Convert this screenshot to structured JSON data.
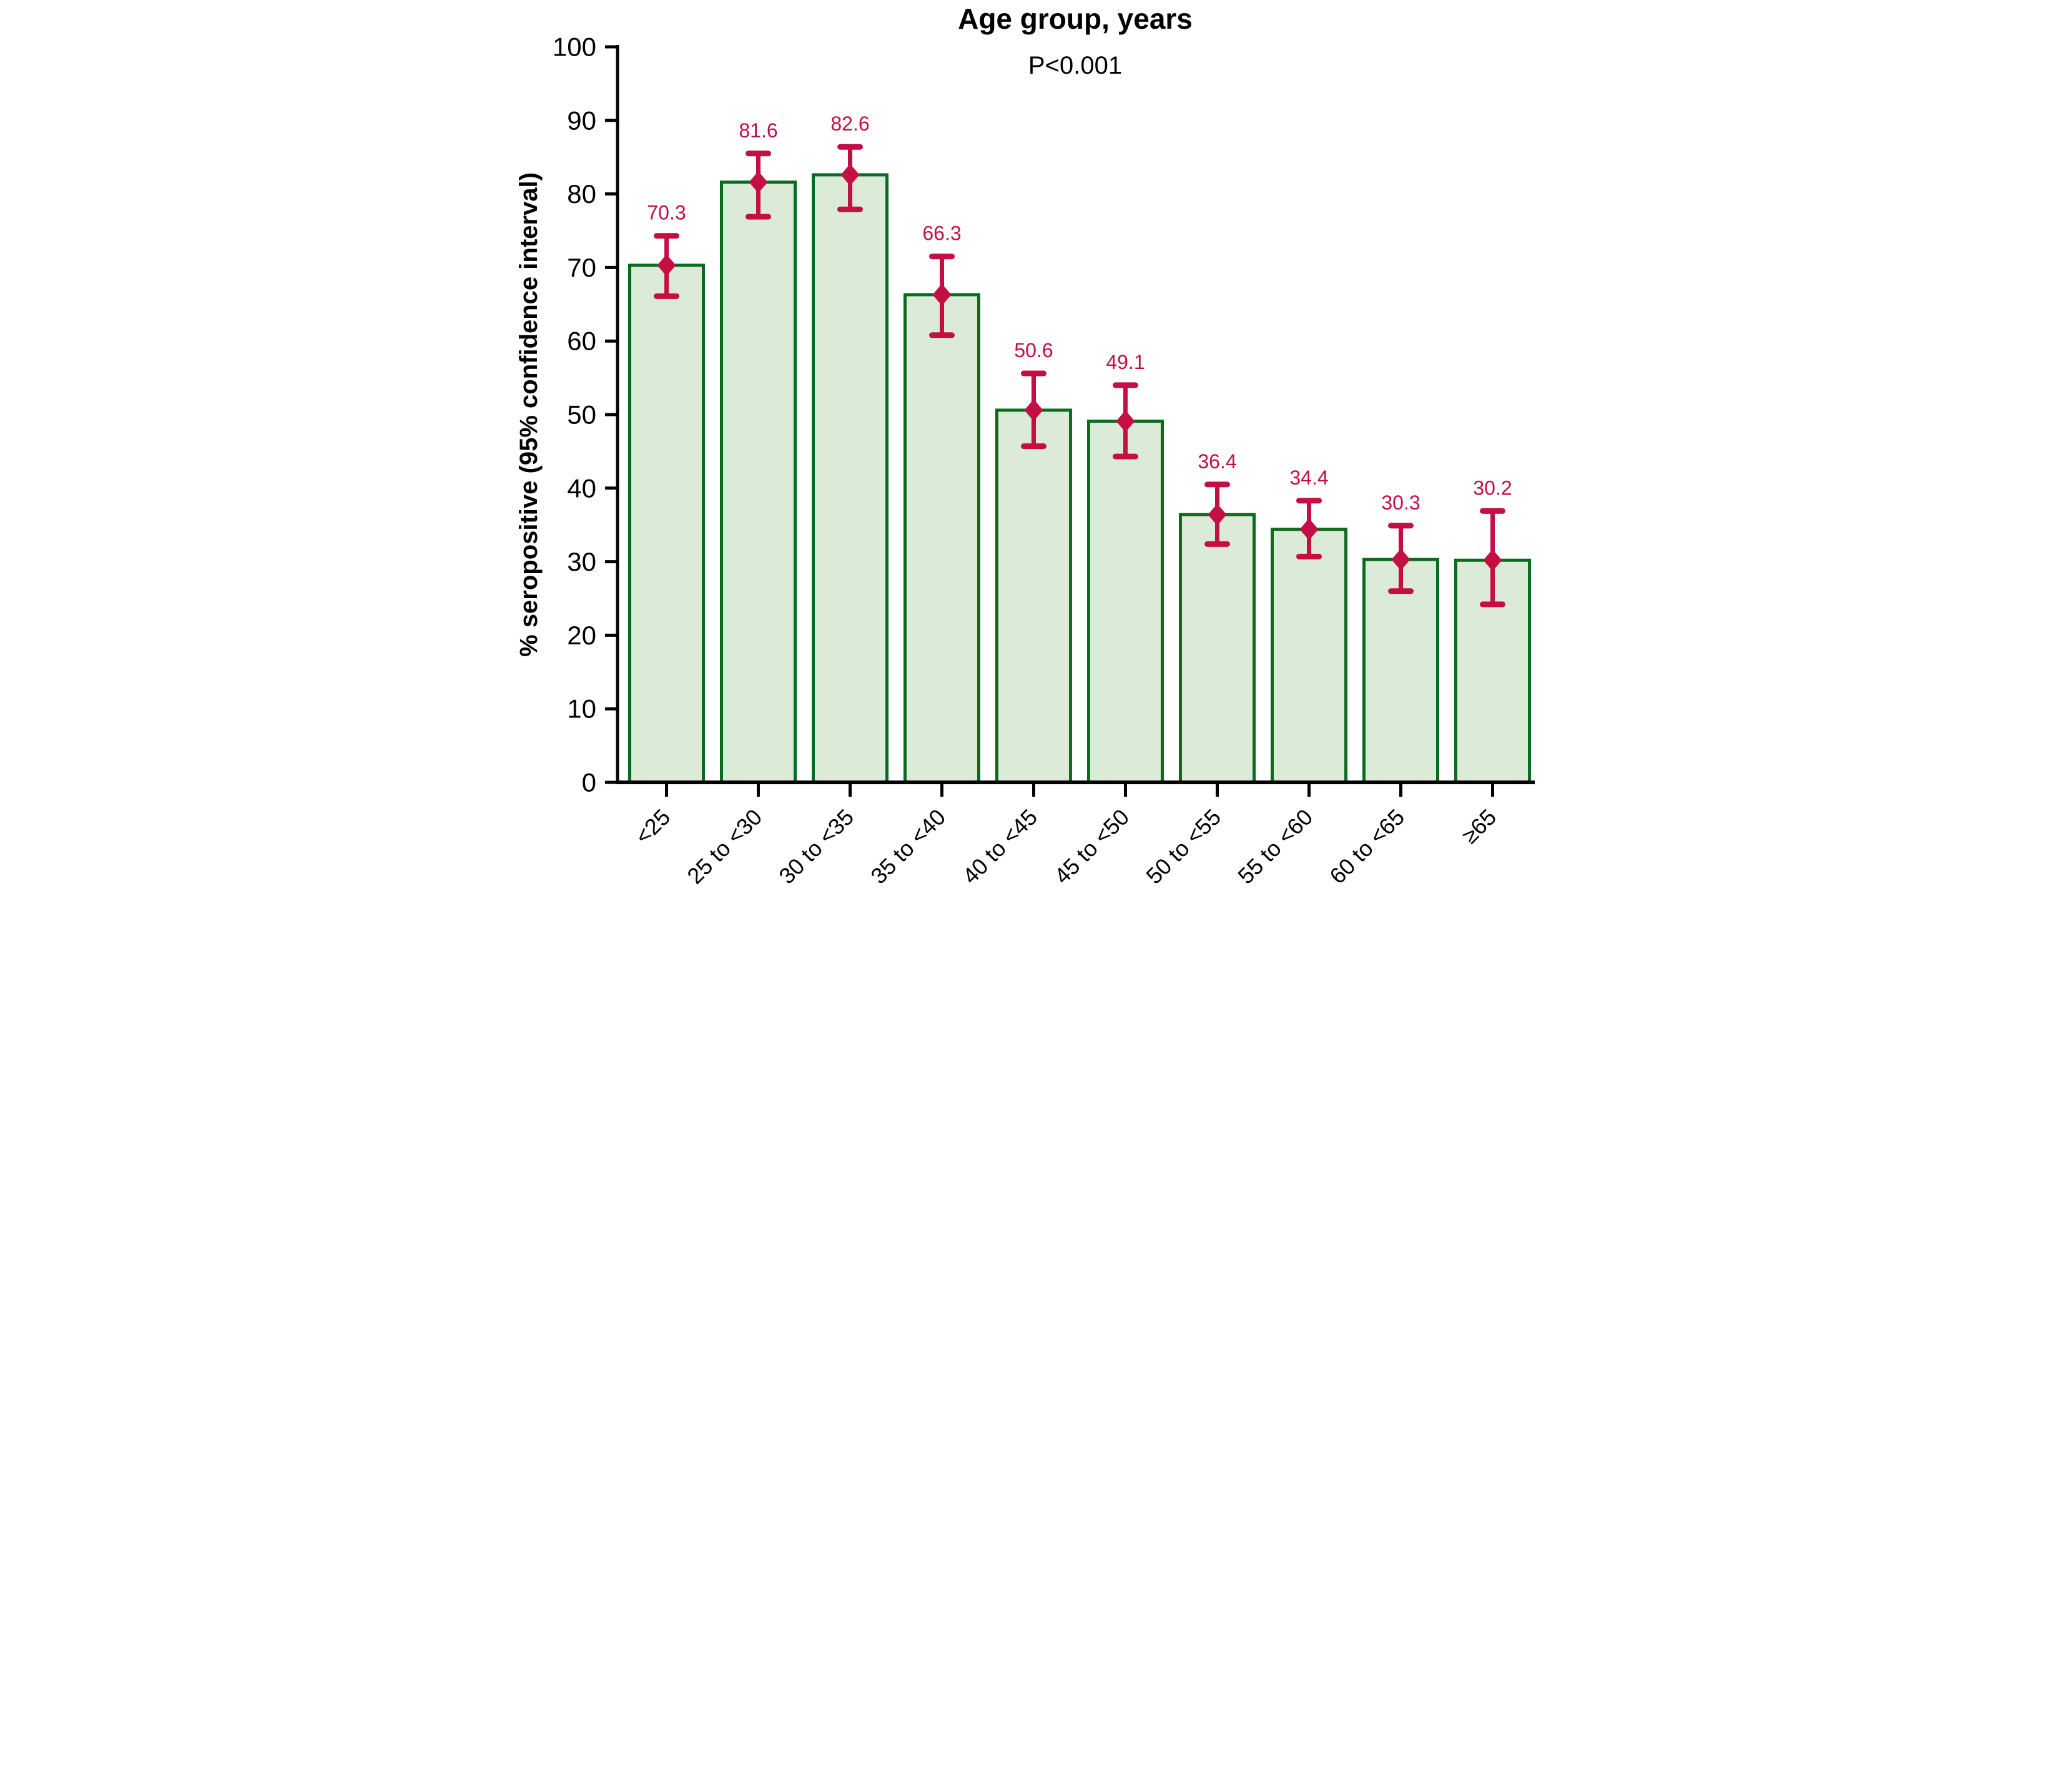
{
  "chart_data": {
    "type": "bar",
    "title": "Age group, years",
    "subtitle": "P<0.001",
    "xlabel": "",
    "ylabel": "% seropositive (95% confidence interval)",
    "ylim": [
      0,
      100
    ],
    "ytick_step": 10,
    "grid": false,
    "legend_position": "none",
    "categories": [
      "<25",
      "25 to <30",
      "30 to <35",
      "35 to <40",
      "40 to <45",
      "45 to <50",
      "50 to <55",
      "55 to <60",
      "60 to <65",
      "≥65"
    ],
    "values": [
      70.3,
      81.6,
      82.6,
      66.3,
      50.6,
      49.1,
      36.4,
      34.4,
      30.3,
      30.2
    ],
    "ci_lower": [
      66.1,
      76.9,
      77.9,
      60.8,
      45.7,
      44.3,
      32.4,
      30.7,
      26.0,
      24.2
    ],
    "ci_upper": [
      74.3,
      85.5,
      86.4,
      71.5,
      55.6,
      54.0,
      40.5,
      38.3,
      34.9,
      36.9
    ],
    "value_labels": [
      "70.3",
      "81.6",
      "82.6",
      "66.3",
      "50.6",
      "49.1",
      "36.4",
      "34.4",
      "30.3",
      "30.2"
    ],
    "marker": "diamond",
    "colors": {
      "bar_fill": "#dcebd8",
      "bar_border": "#0b6b1f",
      "error_bar": "#c40f45",
      "value_label": "#c40f45",
      "axis": "#000000",
      "background": "#ffffff"
    }
  }
}
